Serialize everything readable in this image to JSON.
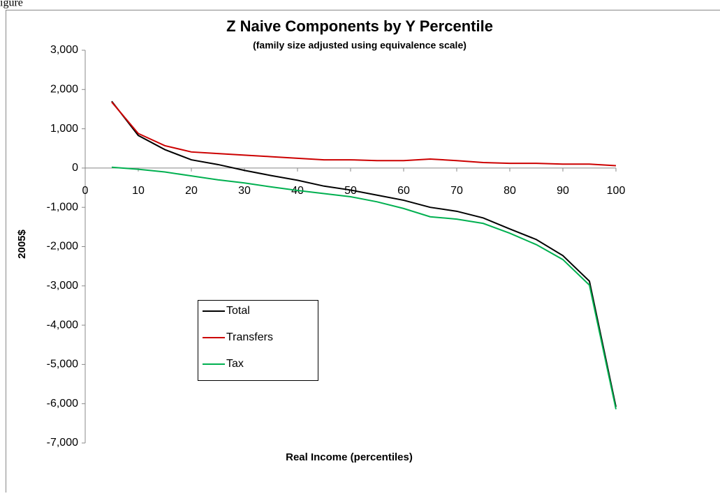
{
  "page_label": "igure",
  "chart_data": {
    "type": "line",
    "title": "Z Naive Components by Y Percentile",
    "subtitle": "(family size adjusted using equivalence scale)",
    "x_label": "Real Income (percentiles)",
    "y_label": "2005$",
    "x": [
      5,
      10,
      15,
      20,
      25,
      30,
      35,
      40,
      45,
      50,
      55,
      60,
      65,
      70,
      75,
      80,
      85,
      90,
      95,
      100
    ],
    "series": [
      {
        "name": "Total",
        "color": "#000000",
        "values": [
          1700,
          830,
          470,
          210,
          90,
          -60,
          -190,
          -310,
          -460,
          -560,
          -690,
          -820,
          -1000,
          -1100,
          -1270,
          -1550,
          -1820,
          -2230,
          -2880,
          -6080
        ]
      },
      {
        "name": "Transfers",
        "color": "#cc0000",
        "values": [
          1680,
          880,
          570,
          410,
          370,
          330,
          290,
          250,
          210,
          210,
          190,
          190,
          230,
          190,
          140,
          120,
          120,
          100,
          100,
          60
        ]
      },
      {
        "name": "Tax",
        "color": "#00b050",
        "values": [
          20,
          -30,
          -100,
          -200,
          -300,
          -380,
          -480,
          -570,
          -650,
          -730,
          -860,
          -1030,
          -1240,
          -1300,
          -1410,
          -1660,
          -1950,
          -2330,
          -2980,
          -6140
        ]
      }
    ],
    "xlim": [
      0,
      100
    ],
    "xticks": [
      0,
      10,
      20,
      30,
      40,
      50,
      60,
      70,
      80,
      90,
      100
    ],
    "ylim": [
      -7000,
      3000
    ],
    "yticks": [
      {
        "value": 3000,
        "label": "3,000"
      },
      {
        "value": 2000,
        "label": "2,000"
      },
      {
        "value": 1000,
        "label": "1,000"
      },
      0,
      {
        "value": -1000,
        "label": "-1,000"
      },
      {
        "value": -2000,
        "label": "-2,000"
      },
      {
        "value": -3000,
        "label": "-3,000"
      },
      {
        "value": -4000,
        "label": "-4,000"
      },
      {
        "value": -5000,
        "label": "-5,000"
      },
      {
        "value": -6000,
        "label": "-6,000"
      },
      {
        "value": -7000,
        "label": "-7,000"
      }
    ],
    "grid": false
  }
}
